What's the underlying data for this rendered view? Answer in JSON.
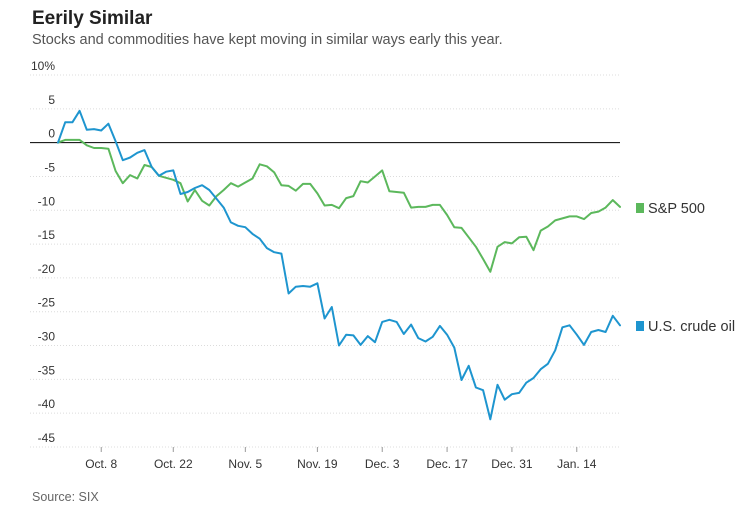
{
  "header": {
    "title": "Eerily Similar",
    "subtitle": "Stocks and commodities have kept moving in similar ways early this year."
  },
  "footer": {
    "source": "Source: SIX"
  },
  "colors": {
    "sp500": "#5cb85c",
    "crude": "#1e95cf",
    "zero_line": "#000000",
    "grid": "#dcdcdc"
  },
  "chart_data": {
    "type": "line",
    "title": "Eerily Similar",
    "subtitle": "Stocks and commodities have kept moving in similar ways early this year.",
    "ylim": [
      -45,
      10
    ],
    "y_ticks": [
      10,
      5,
      0,
      -5,
      -10,
      -15,
      -20,
      -25,
      -30,
      -35,
      -40,
      -45
    ],
    "y_tick_labels": [
      "10%",
      "5",
      "0",
      "-5",
      "-10",
      "-15",
      "-20",
      "-25",
      "-30",
      "-35",
      "-40",
      "-45"
    ],
    "x_tick_labels": [
      "Oct. 8",
      "Oct. 22",
      "Nov. 5",
      "Nov. 19",
      "Dec. 3",
      "Dec. 17",
      "Dec. 31",
      "Jan. 14"
    ],
    "x_tick_index": [
      6,
      16,
      26,
      36,
      45,
      54,
      63,
      72
    ],
    "grid": "horizontal",
    "legend": "right, inline labels",
    "series": [
      {
        "name": "S&P 500",
        "color": "#5cb85c",
        "values": [
          0,
          0.4,
          0.4,
          0.4,
          -0.4,
          -0.8,
          -0.8,
          -0.9,
          -4.2,
          -6,
          -4.8,
          -5.3,
          -3.3,
          -3.6,
          -4.9,
          -5.2,
          -5.5,
          -6,
          -8.7,
          -7,
          -8.6,
          -9.3,
          -7.9,
          -7,
          -6,
          -6.5,
          -5.9,
          -5.3,
          -3.2,
          -3.5,
          -4.4,
          -6.3,
          -6.4,
          -7.1,
          -6.1,
          -6.1,
          -7.5,
          -9.3,
          -9.2,
          -9.7,
          -8.2,
          -7.9,
          -5.7,
          -5.9,
          -5,
          -4.1,
          -7.2,
          -7.3,
          -7.4,
          -9.6,
          -9.5,
          -9.5,
          -9.2,
          -9.2,
          -10.7,
          -12.5,
          -12.6,
          -14,
          -15.4,
          -17.2,
          -19.1,
          -15.4,
          -14.7,
          -14.9,
          -14,
          -13.9,
          -15.9,
          -13,
          -12.4,
          -11.5,
          -11.2,
          -10.9,
          -10.9,
          -11.3,
          -10.4,
          -10.2,
          -9.6,
          -8.5,
          -9.5
        ]
      },
      {
        "name": "U.S. crude oil",
        "color": "#1e95cf",
        "values": [
          0,
          3,
          3,
          4.7,
          1.9,
          2,
          1.8,
          2.8,
          0.2,
          -2.6,
          -2.2,
          -1.5,
          -1.1,
          -3.6,
          -4.9,
          -4.3,
          -4.1,
          -7.6,
          -7.3,
          -6.7,
          -6.3,
          -7,
          -8.3,
          -9.6,
          -11.8,
          -12.3,
          -12.5,
          -13.5,
          -14.2,
          -15.6,
          -16.2,
          -16.4,
          -22.3,
          -21.3,
          -21.2,
          -21.3,
          -20.8,
          -26,
          -24.3,
          -30,
          -28.4,
          -28.5,
          -29.9,
          -28.6,
          -29.5,
          -26.5,
          -26.2,
          -26.5,
          -28.3,
          -26.9,
          -28.9,
          -29.4,
          -28.7,
          -27.1,
          -28.4,
          -30.3,
          -35.1,
          -33,
          -36.2,
          -36.6,
          -40.9,
          -35.8,
          -38,
          -37.2,
          -37,
          -35.5,
          -34.8,
          -33.5,
          -32.7,
          -30.7,
          -27.3,
          -27,
          -28.4,
          -29.9,
          -28,
          -27.7,
          -28,
          -25.6,
          -27
        ]
      }
    ]
  }
}
